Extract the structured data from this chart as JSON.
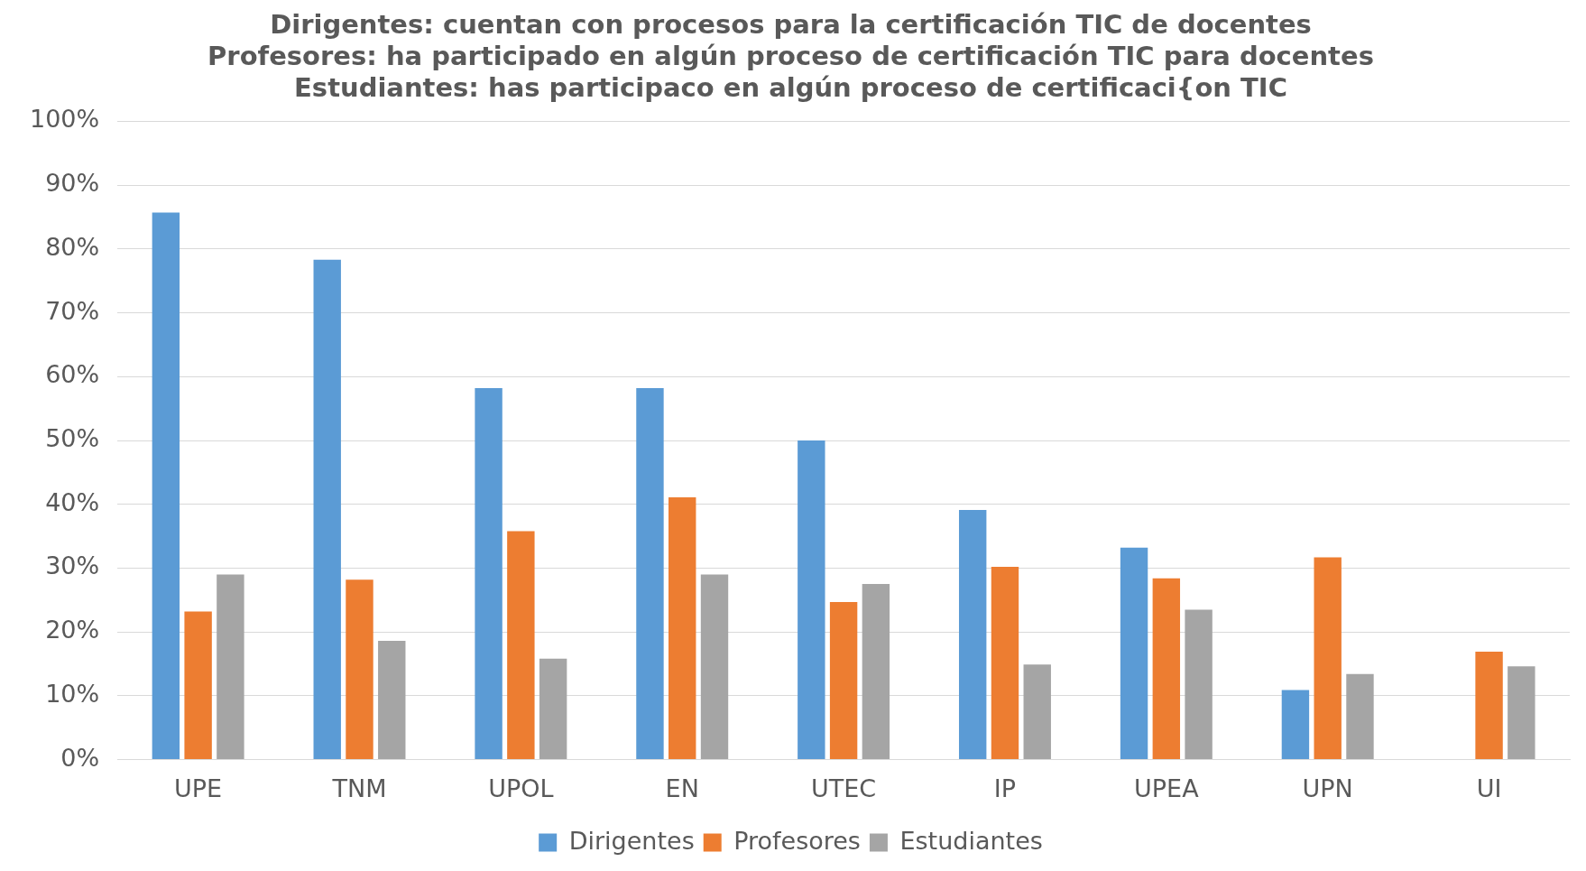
{
  "chart_data": {
    "type": "bar",
    "title": [
      "Dirigentes: cuentan con procesos para la certificación TIC de docentes",
      "Profesores: ha participado en algún proceso de certificación TIC para docentes",
      "Estudiantes: has participaco en algún proceso de certificaci{on TIC"
    ],
    "categories": [
      "UPE",
      "TNM",
      "UPOL",
      "EN",
      "UTEC",
      "IP",
      "UPEA",
      "UPN",
      "UI"
    ],
    "series": [
      {
        "name": "Dirigentes",
        "color": "#5b9bd5",
        "values": [
          85.7,
          78.3,
          58.2,
          58.2,
          50,
          39.1,
          33.2,
          10.9,
          0
        ]
      },
      {
        "name": "Profesores",
        "color": "#ed7d31",
        "values": [
          23.2,
          28.2,
          35.8,
          41.1,
          24.7,
          30.2,
          28.4,
          31.7,
          16.9
        ]
      },
      {
        "name": "Estudiantes",
        "color": "#a5a5a5",
        "values": [
          29.0,
          18.6,
          15.8,
          29.0,
          27.5,
          14.9,
          23.5,
          13.4,
          14.6
        ]
      }
    ],
    "ylim": [
      0,
      100
    ],
    "yticks": [
      {
        "value": 0,
        "label": "0%"
      },
      {
        "value": 10,
        "label": "10%"
      },
      {
        "value": 20,
        "label": "20%"
      },
      {
        "value": 30,
        "label": "30%"
      },
      {
        "value": 40,
        "label": "40%"
      },
      {
        "value": 50,
        "label": "50%"
      },
      {
        "value": 60,
        "label": "60%"
      },
      {
        "value": 70,
        "label": "70%"
      },
      {
        "value": 80,
        "label": "80%"
      },
      {
        "value": 90,
        "label": "90%"
      },
      {
        "value": 100,
        "label": "100%"
      }
    ],
    "grid": "y",
    "legend": "bottom"
  }
}
